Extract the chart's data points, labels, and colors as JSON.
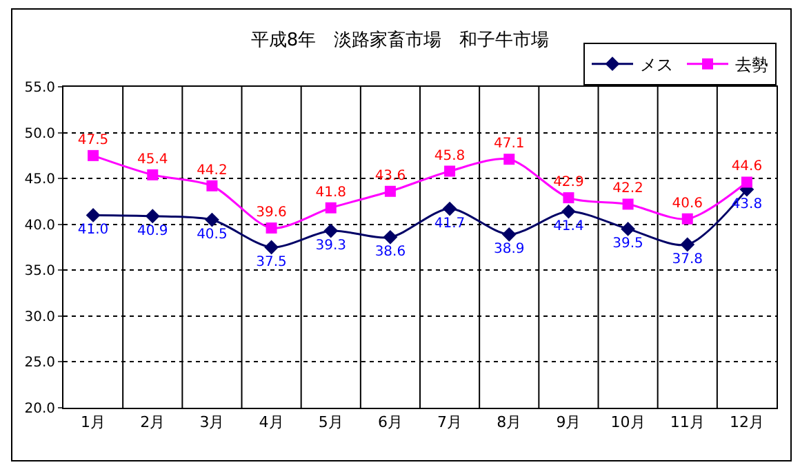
{
  "chart_data": {
    "type": "line",
    "title": "平成8年　淡路家畜市場　和子牛市場",
    "categories": [
      "1月",
      "2月",
      "3月",
      "4月",
      "5月",
      "6月",
      "7月",
      "8月",
      "9月",
      "10月",
      "11月",
      "12月"
    ],
    "series": [
      {
        "name": "メス",
        "color": "#000066",
        "marker": "diamond",
        "values": [
          41.0,
          40.9,
          40.5,
          37.5,
          39.3,
          38.6,
          41.7,
          38.9,
          41.4,
          39.5,
          37.8,
          43.8
        ],
        "value_labels": [
          "41.0",
          "40.9",
          "40.5",
          "37.5",
          "39.3",
          "38.6",
          "41.7",
          "38.9",
          "41.4",
          "39.5",
          "37.8",
          "43.8"
        ]
      },
      {
        "name": "去勢",
        "color": "#ff00ff",
        "marker": "square",
        "values": [
          47.5,
          45.4,
          44.2,
          39.6,
          41.8,
          43.6,
          45.8,
          47.1,
          42.9,
          42.2,
          40.6,
          44.6
        ],
        "value_labels": [
          "47.5",
          "45.4",
          "44.2",
          "39.6",
          "41.8",
          "43.6",
          "45.8",
          "47.1",
          "42.9",
          "42.2",
          "40.6",
          "44.6"
        ]
      }
    ],
    "ylim": [
      20,
      55
    ],
    "yticks": [
      "20.0",
      "25.0",
      "30.0",
      "35.0",
      "40.0",
      "45.0",
      "50.0",
      "55.0"
    ],
    "grid": true,
    "legend": "top right"
  }
}
